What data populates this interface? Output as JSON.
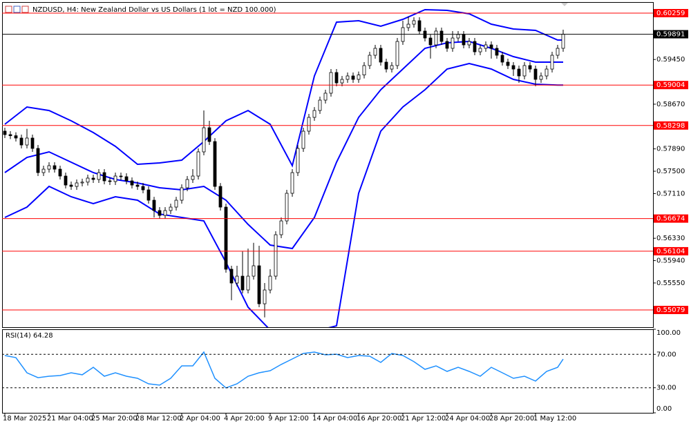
{
  "chart_data": [
    {
      "type": "candlestick",
      "title": "NZDUSD, H4:  New Zealand Dollar vs US Dollars (1 lot = NZD 100.000)",
      "xlim": [
        -0.5,
        117.25
      ],
      "xticks": [
        {
          "value": 0,
          "label": "18 Mar 2025"
        },
        {
          "value": 8,
          "label": "21 Mar 04:00"
        },
        {
          "value": 16,
          "label": "25 Mar 20:00"
        },
        {
          "value": 24,
          "label": "28 Mar 12:00"
        },
        {
          "value": 32,
          "label": "2 Apr 04:00"
        },
        {
          "value": 40,
          "label": "4 Apr 20:00"
        },
        {
          "value": 48,
          "label": "9 Apr 12:00"
        },
        {
          "value": 56,
          "label": "14 Apr 04:00"
        },
        {
          "value": 64,
          "label": "16 Apr 20:00"
        },
        {
          "value": 72,
          "label": "21 Apr 12:00"
        },
        {
          "value": 80,
          "label": "24 Apr 04:00"
        },
        {
          "value": 88,
          "label": "28 Apr 20:00"
        },
        {
          "value": 96,
          "label": "1 May 12:00"
        }
      ],
      "ylim": [
        0.54778,
        0.60452
      ],
      "yticks": [
        {
          "value": 0.5945,
          "label": "0.59450"
        },
        {
          "value": 0.5867,
          "label": "0.58670"
        },
        {
          "value": 0.5789,
          "label": "0.57890"
        },
        {
          "value": 0.575,
          "label": "0.57500"
        },
        {
          "value": 0.5711,
          "label": "0.57110"
        },
        {
          "value": 0.5633,
          "label": "0.56330"
        },
        {
          "value": 0.5594,
          "label": "0.55940"
        },
        {
          "value": 0.5555,
          "label": "0.55550"
        }
      ],
      "up_color": "#ffffff",
      "down_color": "#000000",
      "color": "#000000",
      "x": [
        0,
        1,
        2,
        3,
        4,
        5,
        6,
        7,
        8,
        9,
        10,
        11,
        12,
        13,
        14,
        15,
        16,
        17,
        18,
        19,
        20,
        21,
        22,
        23,
        24,
        25,
        26,
        27,
        28,
        29,
        30,
        31,
        32,
        33,
        34,
        35,
        36,
        37,
        38,
        39,
        40,
        41,
        42,
        43,
        44,
        45,
        46,
        47,
        48,
        49,
        50,
        51,
        52,
        53,
        54,
        55,
        56,
        57,
        58,
        59,
        60,
        61,
        62,
        63,
        64,
        65,
        66,
        67,
        68,
        69,
        70,
        71,
        72,
        73,
        74,
        75,
        76,
        77,
        78,
        79,
        80,
        81,
        82,
        83,
        84,
        85,
        86,
        87,
        88,
        89,
        90,
        91,
        92,
        93,
        94,
        95,
        96,
        97,
        98,
        99,
        100,
        101
      ],
      "open": [
        0.582,
        0.58139,
        0.5812,
        0.58079,
        0.57958,
        0.58079,
        0.57898,
        0.57476,
        0.57536,
        0.57597,
        0.57536,
        0.57416,
        0.57259,
        0.57235,
        0.57296,
        0.5731,
        0.5738,
        0.57356,
        0.57476,
        0.57332,
        0.5732,
        0.57416,
        0.57404,
        0.57332,
        0.57259,
        0.57235,
        0.57175,
        0.56994,
        0.56814,
        0.56729,
        0.56814,
        0.56874,
        0.56994,
        0.57211,
        0.57356,
        0.57416,
        0.57838,
        0.58259,
        0.58018,
        0.57235,
        0.56874,
        0.5579,
        0.55549,
        0.55669,
        0.55428,
        0.55669,
        0.5585,
        0.55187,
        0.55428,
        0.55669,
        0.56392,
        0.56633,
        0.57115,
        0.57476,
        0.57898,
        0.58199,
        0.5844,
        0.5856,
        0.58741,
        0.58862,
        0.59223,
        0.59042,
        0.59103,
        0.59163,
        0.59103,
        0.5918,
        0.59344,
        0.59524,
        0.59645,
        0.59404,
        0.59283,
        0.59344,
        0.59765,
        0.60006,
        0.60066,
        0.60127,
        0.59946,
        0.59825,
        0.59705,
        0.59946,
        0.59765,
        0.59645,
        0.59825,
        0.59886,
        0.59705,
        0.59765,
        0.59584,
        0.59645,
        0.59705,
        0.59645,
        0.59524,
        0.59404,
        0.59344,
        0.59283,
        0.59163,
        0.59344,
        0.59283,
        0.59103,
        0.59163,
        0.59283,
        0.59524,
        0.59645
      ],
      "high": [
        0.5826,
        0.58199,
        0.5818,
        0.58139,
        0.5824,
        0.58139,
        0.57958,
        0.57597,
        0.57657,
        0.57657,
        0.57597,
        0.57476,
        0.5732,
        0.57356,
        0.5737,
        0.5744,
        0.5744,
        0.57536,
        0.57536,
        0.57392,
        0.57476,
        0.57476,
        0.57464,
        0.57392,
        0.5732,
        0.57296,
        0.57235,
        0.57054,
        0.56874,
        0.56874,
        0.56934,
        0.57054,
        0.57271,
        0.57416,
        0.57536,
        0.57898,
        0.5856,
        0.5838,
        0.58078,
        0.57295,
        0.56934,
        0.5585,
        0.5585,
        0.561,
        0.5615,
        0.5625,
        0.562,
        0.55549,
        0.5579,
        0.56452,
        0.56693,
        0.57175,
        0.57536,
        0.57958,
        0.58259,
        0.585,
        0.5862,
        0.58801,
        0.58922,
        0.59283,
        0.59283,
        0.59163,
        0.59223,
        0.59223,
        0.5924,
        0.59404,
        0.59584,
        0.59705,
        0.59705,
        0.59464,
        0.59404,
        0.59825,
        0.60127,
        0.602,
        0.60187,
        0.60187,
        0.60006,
        0.59885,
        0.60006,
        0.60006,
        0.59825,
        0.59946,
        0.59946,
        0.59946,
        0.59825,
        0.59825,
        0.59705,
        0.59765,
        0.59765,
        0.59705,
        0.59584,
        0.59464,
        0.59404,
        0.59343,
        0.59404,
        0.59404,
        0.59343,
        0.59223,
        0.59343,
        0.59584,
        0.59705,
        0.5997
      ],
      "low": [
        0.58079,
        0.5806,
        0.58019,
        0.57898,
        0.57898,
        0.57838,
        0.57416,
        0.57416,
        0.57476,
        0.57476,
        0.57356,
        0.57199,
        0.57175,
        0.57175,
        0.57236,
        0.5725,
        0.57296,
        0.57296,
        0.57272,
        0.5726,
        0.5726,
        0.57344,
        0.57272,
        0.57199,
        0.57175,
        0.57115,
        0.56934,
        0.56694,
        0.56669,
        0.56669,
        0.56754,
        0.56814,
        0.56934,
        0.57151,
        0.57296,
        0.57356,
        0.57778,
        0.57958,
        0.57175,
        0.56814,
        0.5573,
        0.5525,
        0.55489,
        0.55368,
        0.55368,
        0.55609,
        0.55127,
        0.5495,
        0.55368,
        0.55609,
        0.56332,
        0.56573,
        0.57055,
        0.57416,
        0.57838,
        0.58139,
        0.5838,
        0.585,
        0.58681,
        0.58802,
        0.58982,
        0.58982,
        0.59043,
        0.59043,
        0.59043,
        0.5912,
        0.59284,
        0.59464,
        0.59344,
        0.59223,
        0.59223,
        0.59284,
        0.59705,
        0.59946,
        0.60006,
        0.59886,
        0.59765,
        0.59465,
        0.59645,
        0.59705,
        0.59585,
        0.59585,
        0.59765,
        0.59645,
        0.59645,
        0.59524,
        0.59524,
        0.59585,
        0.59465,
        0.59464,
        0.59344,
        0.59284,
        0.59163,
        0.59043,
        0.59103,
        0.59223,
        0.58982,
        0.59043,
        0.59103,
        0.59223,
        0.59464,
        0.59585
      ],
      "close": [
        0.58139,
        0.5812,
        0.58079,
        0.57958,
        0.58079,
        0.57898,
        0.57476,
        0.57536,
        0.57597,
        0.57536,
        0.57416,
        0.57259,
        0.57235,
        0.57296,
        0.5731,
        0.5738,
        0.57356,
        0.57476,
        0.57332,
        0.5732,
        0.57416,
        0.57404,
        0.57332,
        0.57259,
        0.57235,
        0.57175,
        0.56994,
        0.56814,
        0.56729,
        0.56814,
        0.56874,
        0.56994,
        0.57211,
        0.57356,
        0.57416,
        0.57838,
        0.58259,
        0.58018,
        0.57235,
        0.56874,
        0.5579,
        0.55549,
        0.55669,
        0.55428,
        0.55669,
        0.5585,
        0.55187,
        0.55428,
        0.55669,
        0.56392,
        0.56633,
        0.57115,
        0.57476,
        0.57898,
        0.58199,
        0.5844,
        0.5856,
        0.58741,
        0.58862,
        0.59223,
        0.59042,
        0.59103,
        0.59163,
        0.59103,
        0.5918,
        0.59344,
        0.59524,
        0.59645,
        0.59404,
        0.59283,
        0.59344,
        0.59765,
        0.60006,
        0.60066,
        0.60127,
        0.59946,
        0.59825,
        0.59705,
        0.59946,
        0.59765,
        0.59645,
        0.59825,
        0.59886,
        0.59705,
        0.59765,
        0.59584,
        0.59645,
        0.59705,
        0.59645,
        0.59524,
        0.59404,
        0.59344,
        0.59283,
        0.59163,
        0.59344,
        0.59283,
        0.59103,
        0.59163,
        0.59283,
        0.59524,
        0.59645,
        0.59891
      ],
      "series": [
        {
          "color": "#0000ff",
          "x": [
            0,
            4,
            8,
            12,
            16,
            20,
            24,
            28,
            32,
            36,
            40,
            44,
            48,
            52,
            56,
            60,
            64,
            68,
            72,
            76,
            80,
            84,
            88,
            92,
            96,
            100,
            101
          ],
          "values": [
            0.5832,
            0.58621,
            0.5856,
            0.5838,
            0.58175,
            0.57934,
            0.57621,
            0.57645,
            0.57693,
            0.58018,
            0.5838,
            0.5856,
            0.5832,
            0.57597,
            0.59163,
            0.60102,
            0.60127,
            0.6003,
            0.60151,
            0.60319,
            0.60307,
            0.60247,
            0.60066,
            0.59982,
            0.59958,
            0.59789,
            0.59789
          ]
        },
        {
          "color": "#0000ff",
          "x": [
            0,
            4,
            8,
            12,
            16,
            20,
            24,
            28,
            32,
            36,
            40,
            44,
            48,
            52,
            56,
            60,
            64,
            68,
            72,
            76,
            80,
            84,
            88,
            92,
            96,
            100,
            101
          ],
          "values": [
            0.57476,
            0.57741,
            0.57838,
            0.57657,
            0.57476,
            0.57356,
            0.57296,
            0.57211,
            0.57175,
            0.57235,
            0.56994,
            0.56573,
            0.56211,
            0.56151,
            0.56693,
            0.57657,
            0.5844,
            0.58922,
            0.59283,
            0.59645,
            0.59741,
            0.59765,
            0.59645,
            0.595,
            0.59404,
            0.59404,
            0.59404
          ]
        },
        {
          "color": "#0000ff",
          "x": [
            0,
            4,
            8,
            12,
            16,
            20,
            24,
            28,
            32,
            36,
            40,
            44,
            48,
            52,
            56,
            60,
            64,
            68,
            72,
            76,
            80,
            84,
            88,
            92,
            96,
            100,
            101
          ],
          "values": [
            0.56693,
            0.56874,
            0.57235,
            0.57055,
            0.56934,
            0.57055,
            0.56994,
            0.56753,
            0.56693,
            0.56633,
            0.5591,
            0.55127,
            0.5473,
            0.54705,
            0.54705,
            0.54802,
            0.57115,
            0.58199,
            0.58621,
            0.58922,
            0.59283,
            0.5938,
            0.59283,
            0.59103,
            0.59018,
            0.59004,
            0.59004
          ]
        }
      ],
      "levels": [
        {
          "value": 0.60259,
          "color": "#ff0000"
        },
        {
          "value": 0.59891,
          "color": "#000000"
        },
        {
          "value": 0.59004,
          "color": "#ff0000"
        },
        {
          "value": 0.58298,
          "color": "#ff0000"
        },
        {
          "value": 0.56674,
          "color": "#ff0000"
        },
        {
          "value": 0.56104,
          "color": "#ff0000"
        },
        {
          "value": 0.55079,
          "color": "#ff0000"
        }
      ]
    },
    {
      "type": "line",
      "title": "RSI(14) 64.28",
      "xlim": [
        -0.5,
        117.25
      ],
      "ylim": [
        0,
        100
      ],
      "yticks": [
        {
          "value": 100,
          "label": "100.00"
        },
        {
          "value": 70,
          "label": "70.00"
        },
        {
          "value": 30,
          "label": "30.00"
        },
        {
          "value": 0,
          "label": "0.00"
        }
      ],
      "levels": [
        70,
        30
      ],
      "color": "#1e90ff",
      "x": [
        0,
        2,
        4,
        6,
        8,
        10,
        12,
        14,
        16,
        18,
        20,
        22,
        24,
        26,
        28,
        30,
        32,
        34,
        36,
        38,
        40,
        42,
        44,
        46,
        48,
        50,
        52,
        54,
        56,
        58,
        60,
        62,
        64,
        66,
        68,
        70,
        72,
        74,
        76,
        78,
        80,
        82,
        84,
        86,
        88,
        90,
        92,
        94,
        96,
        98,
        100,
        101
      ],
      "values": [
        68.6,
        66.1,
        47.9,
        42.1,
        43.8,
        44.6,
        47.9,
        45.5,
        54.5,
        43.8,
        47.9,
        43.8,
        41.3,
        34.7,
        33.1,
        41.3,
        56.2,
        56.2,
        72.7,
        41.3,
        29.8,
        34.7,
        43.8,
        47.9,
        50.4,
        57.9,
        64.5,
        71.1,
        72.7,
        69.4,
        70.2,
        66.1,
        68.6,
        67.8,
        60.3,
        71.1,
        68.6,
        61.2,
        52.1,
        56.2,
        49.6,
        54.5,
        49.6,
        43.8,
        54.5,
        47.9,
        41.3,
        43.8,
        38.0,
        49.6,
        54.5,
        64.28
      ]
    }
  ]
}
